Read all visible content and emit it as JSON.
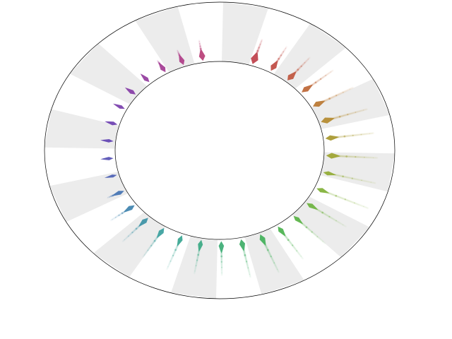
{
  "chart_data": {
    "type": "radial-density",
    "title": "",
    "categories_count": 32,
    "band_count": 24,
    "grid": true,
    "colors": {
      "band_fill": "#ececec",
      "ring_stroke": "#000000",
      "background": "#ffffff"
    },
    "series": [
      {
        "color": "#c0454f",
        "peak": 0.95,
        "spread": 0.85,
        "tail": 0.35
      },
      {
        "color": "#c14f48",
        "peak": 0.8,
        "spread": 0.7,
        "tail": 0.4
      },
      {
        "color": "#c15a42",
        "peak": 0.7,
        "spread": 0.75,
        "tail": 0.45
      },
      {
        "color": "#bf6a3b",
        "peak": 0.85,
        "spread": 0.7,
        "tail": 0.55
      },
      {
        "color": "#bb7a36",
        "peak": 0.75,
        "spread": 0.75,
        "tail": 0.65
      },
      {
        "color": "#b58c33",
        "peak": 0.8,
        "spread": 0.8,
        "tail": 0.7
      },
      {
        "color": "#aa9a33",
        "peak": 0.7,
        "spread": 0.7,
        "tail": 0.7
      },
      {
        "color": "#a0a535",
        "peak": 0.8,
        "spread": 0.75,
        "tail": 0.75
      },
      {
        "color": "#94ad38",
        "peak": 0.65,
        "spread": 0.55,
        "tail": 0.8
      },
      {
        "color": "#84b23c",
        "peak": 0.75,
        "spread": 0.6,
        "tail": 0.85
      },
      {
        "color": "#70b442",
        "peak": 0.75,
        "spread": 0.6,
        "tail": 0.7
      },
      {
        "color": "#5db449",
        "peak": 0.7,
        "spread": 0.55,
        "tail": 0.65
      },
      {
        "color": "#4fb452",
        "peak": 0.75,
        "spread": 0.6,
        "tail": 0.65
      },
      {
        "color": "#47b25e",
        "peak": 0.85,
        "spread": 0.65,
        "tail": 0.7
      },
      {
        "color": "#43b06a",
        "peak": 0.8,
        "spread": 0.65,
        "tail": 0.65
      },
      {
        "color": "#41ae78",
        "peak": 0.8,
        "spread": 0.6,
        "tail": 0.55
      },
      {
        "color": "#3eab86",
        "peak": 0.8,
        "spread": 0.55,
        "tail": 0.55
      },
      {
        "color": "#3da894",
        "peak": 0.75,
        "spread": 0.55,
        "tail": 0.6
      },
      {
        "color": "#3ea2a0",
        "peak": 0.8,
        "spread": 0.6,
        "tail": 0.55
      },
      {
        "color": "#4095a8",
        "peak": 0.8,
        "spread": 0.6,
        "tail": 0.5
      },
      {
        "color": "#4386b0",
        "peak": 0.75,
        "spread": 0.6,
        "tail": 0.35
      },
      {
        "color": "#4876b4",
        "peak": 0.7,
        "spread": 0.55,
        "tail": 0.15
      },
      {
        "color": "#5064b6",
        "peak": 0.55,
        "spread": 0.4,
        "tail": 0.05
      },
      {
        "color": "#5a54b6",
        "peak": 0.55,
        "spread": 0.45,
        "tail": 0.05
      },
      {
        "color": "#6448b4",
        "peak": 0.6,
        "spread": 0.45,
        "tail": 0.05
      },
      {
        "color": "#7044b2",
        "peak": 0.6,
        "spread": 0.5,
        "tail": 0.05
      },
      {
        "color": "#7c42ae",
        "peak": 0.6,
        "spread": 0.5,
        "tail": 0.05
      },
      {
        "color": "#8840a8",
        "peak": 0.65,
        "spread": 0.55,
        "tail": 0.05
      },
      {
        "color": "#9640a0",
        "peak": 0.65,
        "spread": 0.55,
        "tail": 0.05
      },
      {
        "color": "#a54096",
        "peak": 0.7,
        "spread": 0.6,
        "tail": 0.1
      },
      {
        "color": "#b0418a",
        "peak": 0.7,
        "spread": 0.6,
        "tail": 0.15
      },
      {
        "color": "#b9437a",
        "peak": 0.8,
        "spread": 0.7,
        "tail": 0.25
      }
    ]
  }
}
